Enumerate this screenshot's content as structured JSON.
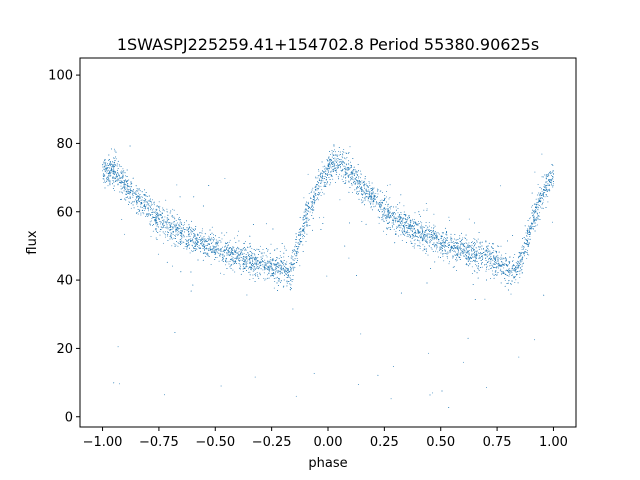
{
  "chart_data": {
    "type": "scatter",
    "title": "1SWASPJ225259.41+154702.8 Period 55380.90625s",
    "xlabel": "phase",
    "ylabel": "flux",
    "xlim": [
      -1.1,
      1.1
    ],
    "ylim": [
      -3,
      105
    ],
    "xticks": [
      -1.0,
      -0.75,
      -0.5,
      -0.25,
      0.0,
      0.25,
      0.5,
      0.75,
      1.0
    ],
    "xtick_labels": [
      "−1.00",
      "−0.75",
      "−0.50",
      "−0.25",
      "0.00",
      "0.25",
      "0.50",
      "0.75",
      "1.00"
    ],
    "yticks": [
      0,
      20,
      40,
      60,
      80,
      100
    ],
    "ytick_labels": [
      "0",
      "20",
      "40",
      "60",
      "80",
      "100"
    ],
    "grid": false,
    "marker_color": "#1f77b4",
    "series": [
      {
        "x": [
          -1.0,
          -0.95,
          -0.9,
          -0.85,
          -0.8,
          -0.75,
          -0.7,
          -0.65,
          -0.6,
          -0.55,
          -0.5,
          -0.45,
          -0.4,
          -0.35,
          -0.3,
          -0.25,
          -0.2,
          -0.17,
          -0.14,
          -0.1,
          -0.06,
          -0.03,
          0.0,
          0.03,
          0.05,
          0.1,
          0.15,
          0.2,
          0.25,
          0.3,
          0.35,
          0.4,
          0.45,
          0.5,
          0.55,
          0.6,
          0.65,
          0.7,
          0.75,
          0.8,
          0.83,
          0.86,
          0.9,
          0.94,
          0.97,
          1.0
        ],
        "y": [
          72,
          72,
          68,
          64,
          61,
          58,
          56,
          54,
          52,
          50.5,
          49,
          48,
          47,
          46,
          45,
          44,
          43,
          42.5,
          48,
          58,
          64,
          69,
          72,
          74,
          74.5,
          71,
          67,
          64,
          61,
          58,
          56,
          54,
          52.5,
          51,
          49.5,
          48.5,
          47.5,
          46.5,
          45.5,
          43,
          42.5,
          46,
          56,
          63,
          67,
          71
        ]
      }
    ]
  }
}
